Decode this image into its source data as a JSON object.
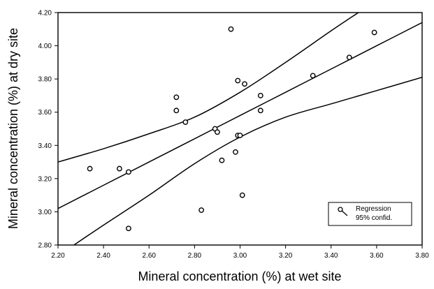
{
  "chart_data": {
    "type": "scatter",
    "title": "",
    "xlabel": "Mineral concentration (%) at wet site",
    "ylabel": "Mineral concentration (%) at dry site",
    "xlim": [
      2.2,
      3.8
    ],
    "ylim": [
      2.8,
      4.2
    ],
    "x_ticks": [
      "2.20",
      "2.40",
      "2.60",
      "2.80",
      "3.00",
      "3.20",
      "3.40",
      "3.60",
      "3.80"
    ],
    "y_ticks": [
      "2.80",
      "3.00",
      "3.20",
      "3.40",
      "3.60",
      "3.80",
      "4.00",
      "4.20"
    ],
    "grid": false,
    "legend_position": "bottom-right",
    "legend": [
      "Regression",
      "95% confid."
    ],
    "series": [
      {
        "name": "",
        "kind": "points",
        "x": [
          2.34,
          2.47,
          2.51,
          2.51,
          2.72,
          2.72,
          2.76,
          2.83,
          2.89,
          2.9,
          2.92,
          2.96,
          2.98,
          2.99,
          2.99,
          3.0,
          3.01,
          3.02,
          3.09,
          3.09,
          3.32,
          3.48,
          3.59
        ],
        "y": [
          3.26,
          3.26,
          3.24,
          2.9,
          3.69,
          3.61,
          3.54,
          3.01,
          3.5,
          3.48,
          3.31,
          4.1,
          3.36,
          3.79,
          3.46,
          3.46,
          3.1,
          3.77,
          3.61,
          3.7,
          3.82,
          3.93,
          4.08
        ]
      },
      {
        "name": "Regression",
        "kind": "line",
        "x": [
          2.2,
          2.4,
          2.6,
          2.8,
          3.0,
          3.2,
          3.4,
          3.6,
          3.8
        ],
        "y": [
          3.02,
          3.16,
          3.3,
          3.44,
          3.58,
          3.72,
          3.86,
          4.0,
          4.14
        ]
      },
      {
        "name": "95% confid.",
        "kind": "band-upper",
        "x": [
          2.2,
          2.4,
          2.6,
          2.8,
          3.0,
          3.2,
          3.4,
          3.52
        ],
        "y": [
          3.3,
          3.38,
          3.47,
          3.57,
          3.72,
          3.9,
          4.09,
          4.2
        ]
      },
      {
        "name": "95% confid.",
        "kind": "band-lower",
        "x": [
          2.27,
          2.4,
          2.6,
          2.8,
          3.0,
          3.2,
          3.4,
          3.6,
          3.8
        ],
        "y": [
          2.8,
          2.92,
          3.1,
          3.29,
          3.45,
          3.57,
          3.65,
          3.73,
          3.81
        ]
      }
    ]
  }
}
